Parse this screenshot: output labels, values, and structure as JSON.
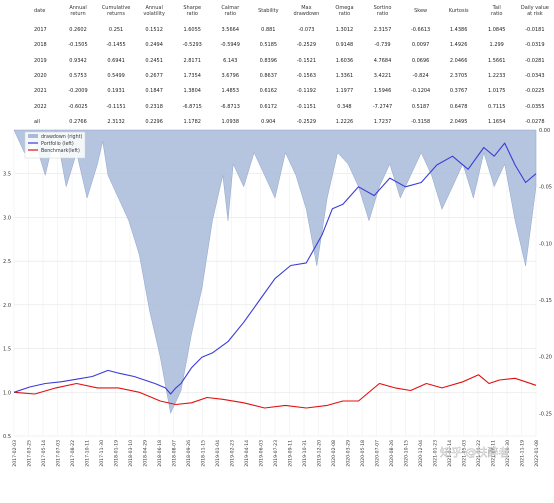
{
  "table": {
    "columns": [
      "date",
      "Annual\nreturn",
      "Cumulative\nreturns",
      "Annual\nvolatility",
      "Sharpe\nratio",
      "Calmar\nratio",
      "Stability",
      "Max\ndrawdown",
      "Omega\nratio",
      "Sortino\nratio",
      "Skew",
      "Kurtosis",
      "Tail\nratio",
      "Daily value\nat risk"
    ],
    "rows": [
      [
        "2017",
        "0.2602",
        "0.251",
        "0.1512",
        "1.6055",
        "3.5664",
        "0.881",
        "-0.073",
        "1.3012",
        "2.3157",
        "-0.6613",
        "1.4386",
        "1.0845",
        "-0.0181"
      ],
      [
        "2018",
        "-0.1505",
        "-0.1455",
        "0.2494",
        "-0.5293",
        "-0.5949",
        "0.5185",
        "-0.2529",
        "0.9148",
        "-0.739",
        "0.0097",
        "1.4926",
        "1.299",
        "-0.0319"
      ],
      [
        "2019",
        "0.9342",
        "0.6941",
        "0.2451",
        "2.8171",
        "6.143",
        "0.8396",
        "-0.1521",
        "1.6036",
        "4.7684",
        "0.0696",
        "2.0466",
        "1.5661",
        "-0.0281"
      ],
      [
        "2020",
        "0.5753",
        "0.5499",
        "0.2677",
        "1.7354",
        "3.6796",
        "0.8637",
        "-0.1563",
        "1.3361",
        "3.4221",
        "-0.824",
        "2.3705",
        "1.2233",
        "-0.0343"
      ],
      [
        "2021",
        "-0.2009",
        "0.1931",
        "0.1847",
        "1.3804",
        "1.4853",
        "0.6162",
        "-0.1192",
        "1.1977",
        "1.5946",
        "-0.1204",
        "0.3767",
        "1.0175",
        "-0.0225"
      ],
      [
        "2022",
        "-0.6025",
        "-0.1151",
        "0.2318",
        "-6.8715",
        "-6.8713",
        "0.6172",
        "-0.1151",
        "0.348",
        "-7.2747",
        "0.5187",
        "0.6478",
        "0.7115",
        "-0.0355"
      ],
      [
        "all",
        "0.2766",
        "2.3132",
        "0.2296",
        "1.1782",
        "1.0938",
        "0.904",
        "-0.2529",
        "1.2226",
        "1.7237",
        "-0.3158",
        "2.0495",
        "1.1654",
        "-0.0278"
      ]
    ]
  },
  "chart_data": {
    "type": "line",
    "title": "",
    "legend": [
      "drawdown (right)",
      "Portfolio (left)",
      "Benchmark(left)"
    ],
    "legend_position": "top-left",
    "y_left": {
      "ticks": [
        "0.5",
        "1.0",
        "1.5",
        "2.0",
        "2.5",
        "3.0",
        "3.5"
      ],
      "ylim": [
        0.5,
        4.0
      ]
    },
    "y_right": {
      "ticks": [
        "0.00",
        "-0.05",
        "-0.10",
        "-0.15",
        "-0.20",
        "-0.25"
      ],
      "ylim": [
        -0.27,
        0.0
      ]
    },
    "x_ticks": [
      "2017-02-03",
      "2017-03-25",
      "2017-05-14",
      "2017-07-03",
      "2017-08-22",
      "2017-10-11",
      "2017-11-30",
      "2018-01-19",
      "2018-03-10",
      "2018-04-29",
      "2018-06-18",
      "2018-08-07",
      "2018-09-26",
      "2018-11-15",
      "2019-01-04",
      "2019-02-23",
      "2019-04-14",
      "2019-06-03",
      "2019-07-23",
      "2019-09-11",
      "2019-10-31",
      "2019-12-20",
      "2020-02-08",
      "2020-03-29",
      "2020-05-18",
      "2020-07-07",
      "2020-08-26",
      "2020-10-15",
      "2020-12-04",
      "2021-01-23",
      "2021-03-14",
      "2021-05-03",
      "2021-06-22",
      "2021-08-11",
      "2021-09-30",
      "2021-11-19",
      "2022-01-08"
    ],
    "series": [
      {
        "name": "Portfolio (left)",
        "color": "#3b3bd8",
        "points": [
          [
            0,
            1.0
          ],
          [
            3,
            1.06
          ],
          [
            6,
            1.1
          ],
          [
            9,
            1.12
          ],
          [
            12,
            1.15
          ],
          [
            15,
            1.18
          ],
          [
            18,
            1.25
          ],
          [
            20,
            1.22
          ],
          [
            23,
            1.18
          ],
          [
            25,
            1.14
          ],
          [
            27,
            1.1
          ],
          [
            29,
            1.05
          ],
          [
            30,
            0.98
          ],
          [
            31,
            1.05
          ],
          [
            32,
            1.1
          ],
          [
            34,
            1.28
          ],
          [
            36,
            1.4
          ],
          [
            38,
            1.45
          ],
          [
            41,
            1.58
          ],
          [
            44,
            1.8
          ],
          [
            47,
            2.05
          ],
          [
            50,
            2.3
          ],
          [
            53,
            2.45
          ],
          [
            56,
            2.48
          ],
          [
            59,
            2.8
          ],
          [
            61,
            3.1
          ],
          [
            63,
            3.15
          ],
          [
            66,
            3.35
          ],
          [
            69,
            3.25
          ],
          [
            72,
            3.45
          ],
          [
            75,
            3.35
          ],
          [
            78,
            3.4
          ],
          [
            81,
            3.6
          ],
          [
            84,
            3.7
          ],
          [
            87,
            3.55
          ],
          [
            90,
            3.8
          ],
          [
            92,
            3.7
          ],
          [
            94,
            3.85
          ],
          [
            96,
            3.6
          ],
          [
            98,
            3.4
          ],
          [
            100,
            3.5
          ]
        ]
      },
      {
        "name": "Benchmark(left)",
        "color": "#e01010",
        "points": [
          [
            0,
            1.0
          ],
          [
            4,
            0.98
          ],
          [
            8,
            1.05
          ],
          [
            12,
            1.1
          ],
          [
            16,
            1.05
          ],
          [
            20,
            1.05
          ],
          [
            24,
            1.0
          ],
          [
            28,
            0.9
          ],
          [
            31,
            0.86
          ],
          [
            34,
            0.88
          ],
          [
            37,
            0.94
          ],
          [
            40,
            0.92
          ],
          [
            44,
            0.88
          ],
          [
            48,
            0.82
          ],
          [
            52,
            0.85
          ],
          [
            56,
            0.82
          ],
          [
            60,
            0.85
          ],
          [
            63,
            0.9
          ],
          [
            66,
            0.9
          ],
          [
            70,
            1.1
          ],
          [
            73,
            1.05
          ],
          [
            76,
            1.02
          ],
          [
            79,
            1.1
          ],
          [
            82,
            1.05
          ],
          [
            86,
            1.12
          ],
          [
            89,
            1.2
          ],
          [
            91,
            1.1
          ],
          [
            93,
            1.14
          ],
          [
            96,
            1.16
          ],
          [
            98,
            1.12
          ],
          [
            100,
            1.08
          ]
        ]
      },
      {
        "name": "drawdown (right)",
        "color": "#a9bbd9",
        "points": [
          [
            0,
            0
          ],
          [
            2,
            -0.02
          ],
          [
            4,
            -0.01
          ],
          [
            6,
            -0.04
          ],
          [
            8,
            0
          ],
          [
            10,
            -0.05
          ],
          [
            12,
            -0.02
          ],
          [
            14,
            -0.06
          ],
          [
            16,
            -0.03
          ],
          [
            17,
            -0.01
          ],
          [
            18,
            -0.04
          ],
          [
            20,
            -0.06
          ],
          [
            22,
            -0.08
          ],
          [
            24,
            -0.11
          ],
          [
            26,
            -0.16
          ],
          [
            28,
            -0.2
          ],
          [
            30,
            -0.25
          ],
          [
            32,
            -0.23
          ],
          [
            34,
            -0.18
          ],
          [
            36,
            -0.14
          ],
          [
            38,
            -0.08
          ],
          [
            40,
            -0.04
          ],
          [
            41,
            -0.08
          ],
          [
            42,
            -0.03
          ],
          [
            44,
            -0.05
          ],
          [
            46,
            -0.02
          ],
          [
            48,
            -0.04
          ],
          [
            50,
            -0.06
          ],
          [
            52,
            -0.02
          ],
          [
            54,
            -0.04
          ],
          [
            56,
            -0.07
          ],
          [
            58,
            -0.12
          ],
          [
            60,
            -0.06
          ],
          [
            62,
            -0.02
          ],
          [
            64,
            -0.03
          ],
          [
            66,
            -0.05
          ],
          [
            68,
            -0.08
          ],
          [
            70,
            -0.05
          ],
          [
            72,
            -0.03
          ],
          [
            74,
            -0.06
          ],
          [
            76,
            -0.04
          ],
          [
            78,
            -0.02
          ],
          [
            80,
            -0.04
          ],
          [
            82,
            -0.07
          ],
          [
            84,
            -0.05
          ],
          [
            86,
            -0.03
          ],
          [
            88,
            -0.06
          ],
          [
            90,
            -0.02
          ],
          [
            92,
            -0.05
          ],
          [
            94,
            -0.03
          ],
          [
            96,
            -0.08
          ],
          [
            98,
            -0.12
          ],
          [
            100,
            -0.05
          ]
        ]
      }
    ]
  },
  "watermark": "知乎 @扶醉者"
}
